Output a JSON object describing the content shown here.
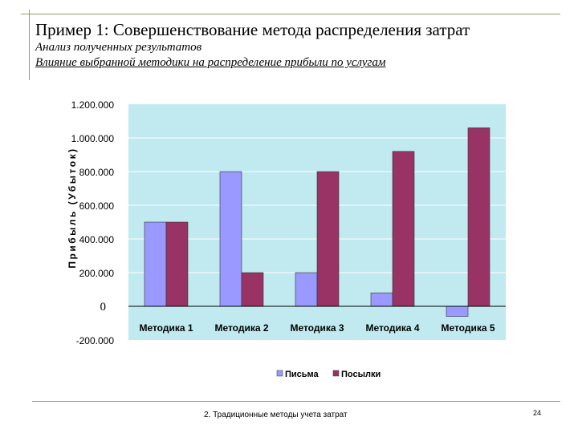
{
  "slide": {
    "title": "Пример 1: Совершенствование метода распределения затрат",
    "subtitle1": "Анализ полученных результатов",
    "subtitle2": "Влияние выбранной методики на распределение прибыли по услугам",
    "footer": "2. Традиционные методы учета затрат",
    "page": "24"
  },
  "colors": {
    "plot_bg": "#c0eaf0",
    "series1": "#9999ff",
    "series2": "#993366"
  },
  "chart_data": {
    "type": "bar",
    "categories": [
      "Методика 1",
      "Методика 2",
      "Методика 3",
      "Методика 4",
      "Методика 5"
    ],
    "series": [
      {
        "name": "Письма",
        "values": [
          500000,
          800000,
          200000,
          80000,
          -60000
        ]
      },
      {
        "name": "Посылки",
        "values": [
          500000,
          200000,
          800000,
          920000,
          1060000
        ]
      }
    ],
    "ylabel": "Прибыль (Убыток)",
    "yticks": [
      "1.200.000",
      "1.000.000",
      "800.000",
      "600.000",
      "400.000",
      "200.000",
      "0",
      "-200.000"
    ],
    "ylim": [
      -200000,
      1200000
    ],
    "ystep": 200000,
    "grid": true,
    "legend": "bottom"
  }
}
